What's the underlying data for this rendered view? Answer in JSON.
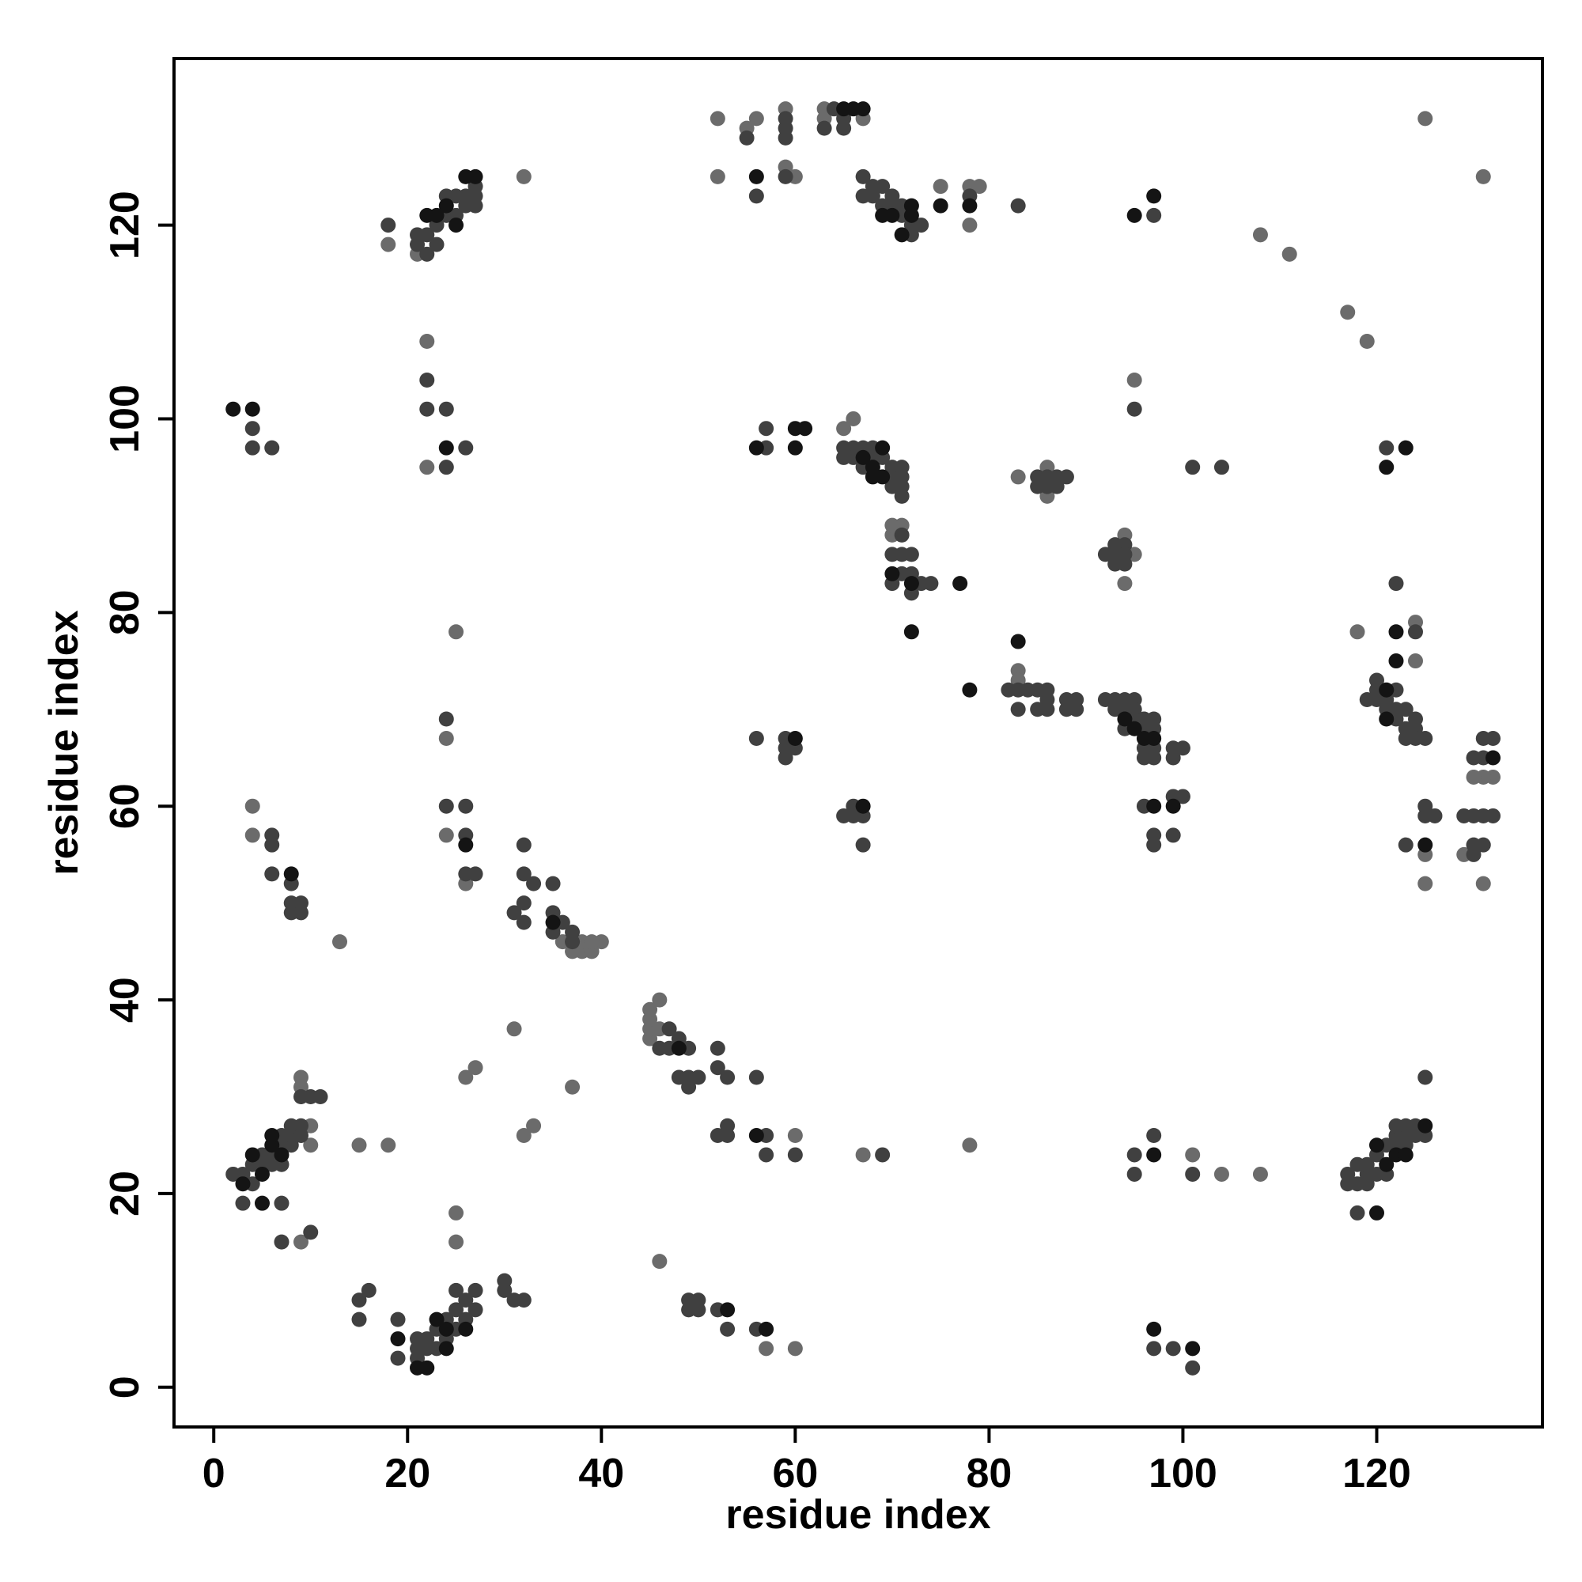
{
  "chart_data": {
    "type": "scatter",
    "xlabel": "residue index",
    "ylabel": "residue index",
    "xlim": [
      -4.1,
      137.1
    ],
    "ylim": [
      -4.1,
      137.2
    ],
    "xticks": [
      0,
      20,
      40,
      60,
      80,
      100,
      120
    ],
    "yticks": [
      0,
      20,
      40,
      60,
      80,
      100,
      120
    ],
    "grid": false,
    "series": [
      {
        "color": "#6b6b6b",
        "x": [
          13,
          15,
          18,
          25,
          31,
          37,
          46,
          52,
          56,
          55,
          59,
          63,
          65,
          66,
          70,
          71,
          83,
          86,
          94,
          108,
          111,
          117,
          119,
          108,
          104,
          101,
          78,
          75,
          78,
          79,
          36,
          37,
          38,
          39,
          40,
          38,
          39,
          45,
          45,
          45,
          45,
          46,
          46,
          125,
          131,
          124,
          124,
          118,
          125,
          125,
          131,
          129,
          25,
          25,
          26,
          27,
          9,
          9,
          4,
          4,
          22,
          22,
          24,
          24,
          26,
          32,
          52,
          60,
          33,
          32,
          57,
          60,
          60,
          67,
          94,
          95,
          83,
          95,
          18,
          21,
          9,
          10,
          10,
          59,
          63,
          67,
          78,
          70,
          83,
          86,
          132,
          131,
          130
        ],
        "y": [
          46,
          25,
          25,
          78,
          37,
          31,
          13,
          131,
          131,
          130,
          126,
          131,
          99,
          100,
          88,
          89,
          94,
          95,
          88,
          119,
          117,
          111,
          108,
          22,
          22,
          24,
          25,
          124,
          124,
          124,
          46,
          45,
          45,
          45,
          46,
          46,
          46,
          36,
          37,
          38,
          39,
          40,
          37,
          131,
          125,
          79,
          75,
          78,
          55,
          52,
          52,
          55,
          15,
          18,
          32,
          33,
          32,
          31,
          60,
          57,
          108,
          95,
          67,
          57,
          52,
          125,
          125,
          125,
          27,
          26,
          4,
          4,
          26,
          24,
          83,
          86,
          74,
          104,
          118,
          117,
          15,
          27,
          25,
          132,
          132,
          131,
          120,
          89,
          73,
          92,
          63,
          63,
          63
        ]
      },
      {
        "color": "#404040",
        "x": [
          2,
          3,
          4,
          4,
          5,
          5,
          6,
          6,
          7,
          7,
          7,
          8,
          8,
          8,
          9,
          9,
          9,
          10,
          11,
          3,
          7,
          7,
          10,
          4,
          4,
          6,
          6,
          6,
          6,
          8,
          8,
          8,
          9,
          9,
          15,
          16,
          15,
          18,
          21,
          21,
          22,
          22,
          23,
          23,
          24,
          24,
          25,
          25,
          26,
          26,
          27,
          27,
          27,
          22,
          22,
          24,
          24,
          26,
          24,
          24,
          26,
          26,
          26,
          27,
          19,
          19,
          21,
          21,
          21,
          22,
          22,
          23,
          23,
          24,
          24,
          25,
          25,
          25,
          26,
          26,
          27,
          27,
          30,
          30,
          31,
          32,
          31,
          32,
          32,
          32,
          32,
          33,
          35,
          35,
          35,
          36,
          37,
          37,
          46,
          47,
          47,
          48,
          48,
          49,
          49,
          49,
          50,
          52,
          52,
          53,
          56,
          49,
          49,
          50,
          50,
          52,
          53,
          56,
          52,
          53,
          53,
          57,
          57,
          60,
          69,
          55,
          56,
          59,
          59,
          59,
          59,
          63,
          64,
          65,
          65,
          67,
          67,
          68,
          68,
          69,
          69,
          70,
          70,
          71,
          71,
          72,
          72,
          73,
          78,
          83,
          97,
          57,
          57,
          65,
          65,
          66,
          66,
          67,
          67,
          68,
          68,
          69,
          70,
          70,
          70,
          71,
          71,
          71,
          71,
          70,
          70,
          71,
          71,
          71,
          72,
          72,
          72,
          73,
          74,
          85,
          85,
          86,
          86,
          87,
          87,
          88,
          92,
          93,
          93,
          93,
          94,
          94,
          94,
          83,
          82,
          84,
          85,
          85,
          86,
          86,
          86,
          88,
          88,
          89,
          89,
          83,
          92,
          93,
          93,
          94,
          94,
          94,
          95,
          95,
          95,
          96,
          96,
          96,
          96,
          97,
          97,
          97,
          97,
          99,
          99,
          100,
          96,
          97,
          97,
          99,
          99,
          100,
          95,
          101,
          104,
          95,
          95,
          97,
          101,
          97,
          99,
          101,
          66,
          66,
          67,
          67,
          65,
          56,
          59,
          59,
          59,
          60,
          117,
          117,
          118,
          118,
          118,
          119,
          119,
          119,
          120,
          120,
          121,
          121,
          122,
          122,
          122,
          123,
          123,
          123,
          124,
          124,
          125,
          125,
          119,
          120,
          120,
          120,
          121,
          121,
          122,
          122,
          122,
          123,
          123,
          123,
          124,
          124,
          124,
          125,
          122,
          124,
          121,
          125,
          125,
          123,
          126,
          129,
          130,
          130,
          130,
          131,
          131,
          130,
          131,
          132,
          132,
          131
        ],
        "y": [
          22,
          22,
          21,
          23,
          23,
          24,
          23,
          24,
          23,
          25,
          26,
          25,
          26,
          27,
          26,
          27,
          30,
          30,
          30,
          19,
          19,
          15,
          16,
          99,
          97,
          97,
          57,
          56,
          53,
          52,
          50,
          49,
          50,
          49,
          9,
          10,
          7,
          120,
          118,
          119,
          117,
          119,
          118,
          120,
          121,
          123,
          121,
          123,
          122,
          123,
          122,
          123,
          124,
          104,
          101,
          101,
          95,
          97,
          69,
          60,
          60,
          57,
          53,
          53,
          7,
          3,
          3,
          4,
          5,
          4,
          5,
          4,
          6,
          5,
          7,
          6,
          8,
          10,
          7,
          9,
          8,
          10,
          10,
          11,
          9,
          9,
          49,
          48,
          50,
          53,
          56,
          52,
          52,
          49,
          47,
          48,
          46,
          47,
          35,
          35,
          37,
          36,
          32,
          35,
          31,
          32,
          32,
          35,
          33,
          32,
          32,
          9,
          8,
          9,
          8,
          8,
          6,
          6,
          26,
          26,
          27,
          26,
          24,
          24,
          24,
          129,
          123,
          131,
          130,
          129,
          125,
          130,
          132,
          130,
          131,
          125,
          123,
          124,
          123,
          124,
          122,
          123,
          122,
          122,
          121,
          120,
          119,
          120,
          123,
          122,
          121,
          97,
          99,
          97,
          96,
          97,
          96,
          97,
          95,
          97,
          96,
          96,
          95,
          94,
          93,
          95,
          94,
          93,
          92,
          86,
          83,
          88,
          86,
          84,
          86,
          84,
          82,
          83,
          83,
          94,
          93,
          94,
          93,
          94,
          93,
          94,
          86,
          87,
          86,
          85,
          87,
          86,
          85,
          72,
          72,
          72,
          72,
          70,
          72,
          71,
          70,
          71,
          70,
          71,
          70,
          70,
          71,
          71,
          70,
          71,
          70,
          68,
          71,
          70,
          69,
          69,
          68,
          66,
          65,
          69,
          68,
          66,
          65,
          66,
          65,
          66,
          60,
          57,
          56,
          61,
          57,
          61,
          101,
          95,
          95,
          24,
          22,
          26,
          22,
          4,
          4,
          2,
          60,
          59,
          59,
          56,
          59,
          67,
          67,
          66,
          65,
          66,
          21,
          22,
          21,
          23,
          18,
          21,
          22,
          23,
          22,
          24,
          22,
          25,
          25,
          26,
          27,
          25,
          26,
          27,
          26,
          27,
          26,
          32,
          71,
          73,
          72,
          71,
          71,
          70,
          72,
          70,
          69,
          70,
          68,
          67,
          69,
          68,
          67,
          67,
          83,
          78,
          97,
          60,
          59,
          56,
          59,
          59,
          59,
          56,
          55,
          59,
          56,
          65,
          65,
          67,
          59,
          67
        ]
      },
      {
        "color": "#141414",
        "x": [
          2,
          4,
          3,
          4,
          5,
          5,
          6,
          6,
          7,
          8,
          19,
          21,
          22,
          23,
          24,
          24,
          26,
          22,
          23,
          24,
          25,
          26,
          27,
          24,
          26,
          35,
          48,
          53,
          57,
          56,
          56,
          56,
          60,
          60,
          61,
          60,
          65,
          66,
          67,
          67,
          67,
          68,
          68,
          69,
          69,
          69,
          70,
          71,
          72,
          72,
          75,
          78,
          70,
          72,
          77,
          72,
          78,
          83,
          94,
          95,
          96,
          97,
          97,
          99,
          95,
          97,
          97,
          97,
          101,
          120,
          121,
          122,
          123,
          120,
          125,
          121,
          121,
          122,
          122,
          125,
          132,
          121,
          123
        ],
        "y": [
          101,
          101,
          21,
          24,
          19,
          22,
          25,
          26,
          24,
          53,
          5,
          2,
          2,
          7,
          4,
          6,
          6,
          121,
          121,
          122,
          120,
          125,
          125,
          97,
          56,
          48,
          35,
          8,
          6,
          26,
          125,
          97,
          97,
          99,
          99,
          67,
          132,
          132,
          132,
          60,
          96,
          95,
          94,
          97,
          94,
          121,
          121,
          119,
          121,
          122,
          122,
          122,
          84,
          83,
          83,
          78,
          72,
          77,
          69,
          68,
          67,
          67,
          60,
          60,
          121,
          123,
          24,
          6,
          4,
          25,
          23,
          24,
          24,
          18,
          27,
          72,
          69,
          78,
          75,
          56,
          65,
          95,
          97
        ]
      }
    ]
  }
}
